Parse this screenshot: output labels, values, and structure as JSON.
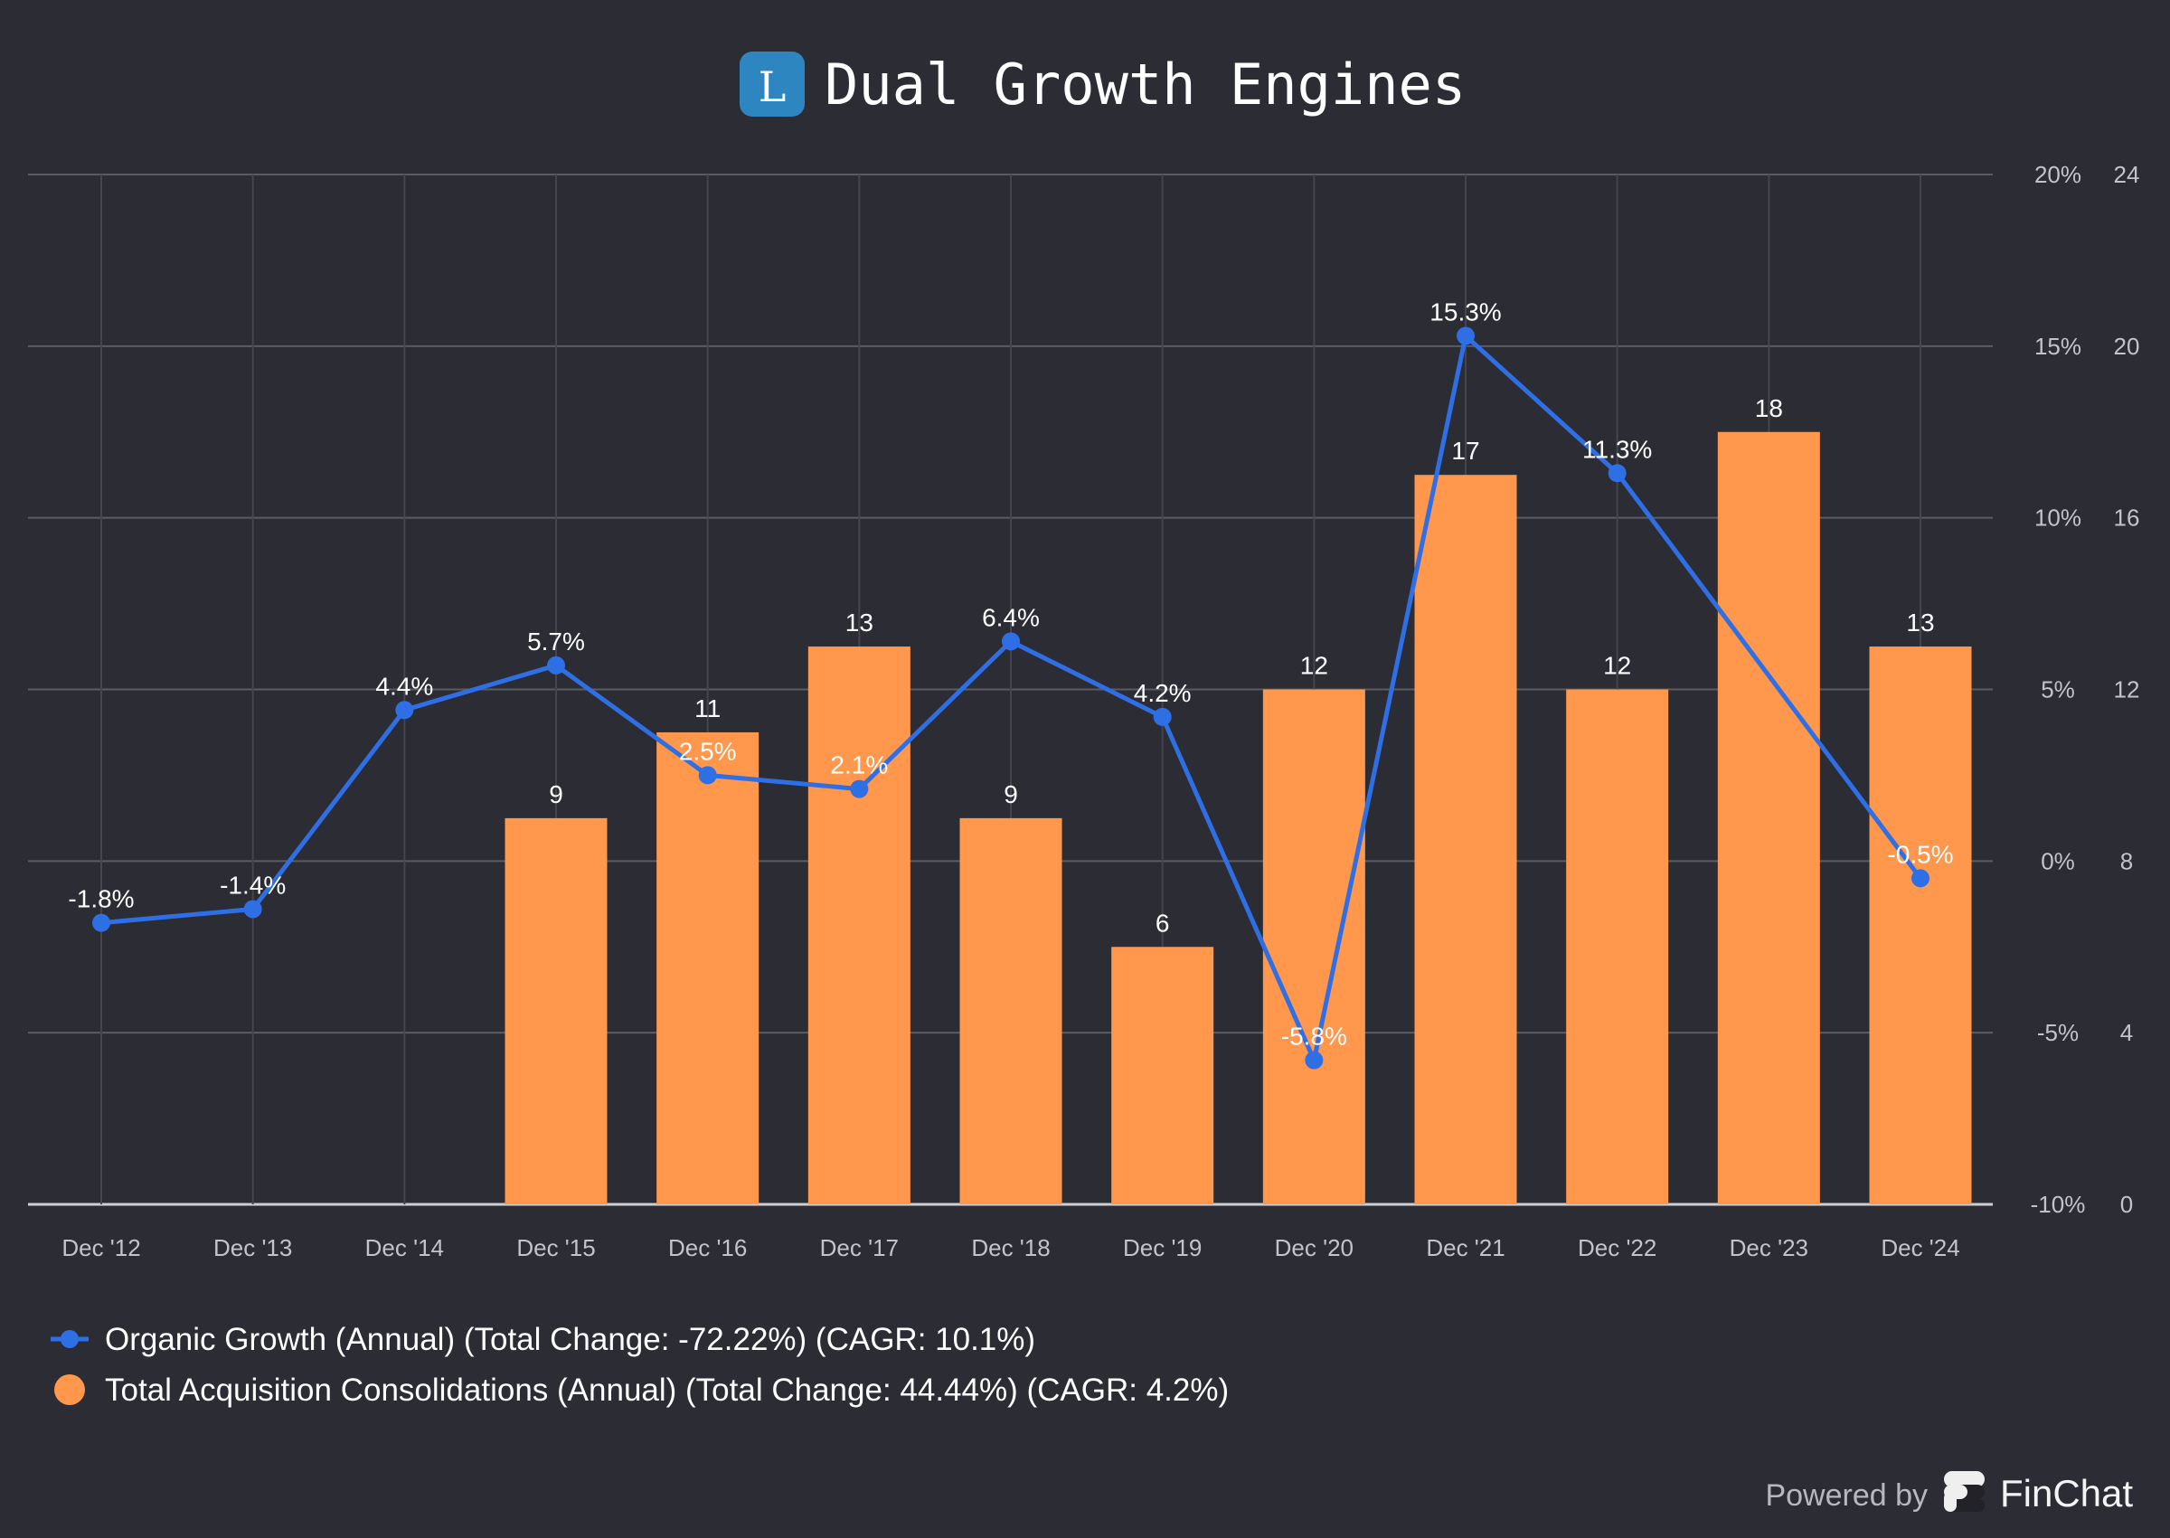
{
  "chart_data": {
    "type": "bar",
    "title": "Dual Growth Engines",
    "logo_letter": "L",
    "categories": [
      "Dec '12",
      "Dec '13",
      "Dec '14",
      "Dec '15",
      "Dec '16",
      "Dec '17",
      "Dec '18",
      "Dec '19",
      "Dec '20",
      "Dec '21",
      "Dec '22",
      "Dec '23",
      "Dec '24"
    ],
    "series": [
      {
        "name": "Organic Growth (Annual) (Total Change: -72.22%) (CAGR: 10.1%)",
        "type": "line",
        "axis": "left",
        "color": "#2f6fe6",
        "values": [
          -1.8,
          -1.4,
          4.4,
          5.7,
          2.5,
          2.1,
          6.4,
          4.2,
          -5.8,
          15.3,
          11.3,
          null,
          -0.5
        ],
        "labels": [
          "-1.8%",
          "-1.4%",
          "4.4%",
          "5.7%",
          "2.5%",
          "2.1%",
          "6.4%",
          "4.2%",
          "-5.8%",
          "15.3%",
          "11.3%",
          null,
          "-0.5%"
        ]
      },
      {
        "name": "Total Acquisition Consolidations (Annual) (Total Change: 44.44%) (CAGR: 4.2%)",
        "type": "bar",
        "axis": "right",
        "color": "#ff974d",
        "values": [
          null,
          null,
          null,
          9,
          11,
          13,
          9,
          6,
          12,
          17,
          12,
          18,
          13
        ],
        "labels": [
          null,
          null,
          null,
          "9",
          "11",
          "13",
          "9",
          "6",
          "12",
          "17",
          "12",
          "18",
          "13"
        ]
      }
    ],
    "y_left": {
      "ylim": [
        -10,
        20
      ],
      "ticks": [
        "20%",
        "15%",
        "10%",
        "5%",
        "0%",
        "-5%",
        "-10%"
      ],
      "tick_values": [
        20,
        15,
        10,
        5,
        0,
        -5,
        -10
      ]
    },
    "y_right": {
      "ylim": [
        0,
        24
      ],
      "ticks": [
        "24",
        "20",
        "16",
        "12",
        "8",
        "4",
        "0"
      ],
      "tick_values": [
        24,
        20,
        16,
        12,
        8,
        4,
        0
      ]
    },
    "grid": true,
    "legend_position": "bottom-left"
  },
  "footer": {
    "powered_by": "Powered by",
    "brand": "FinChat"
  }
}
